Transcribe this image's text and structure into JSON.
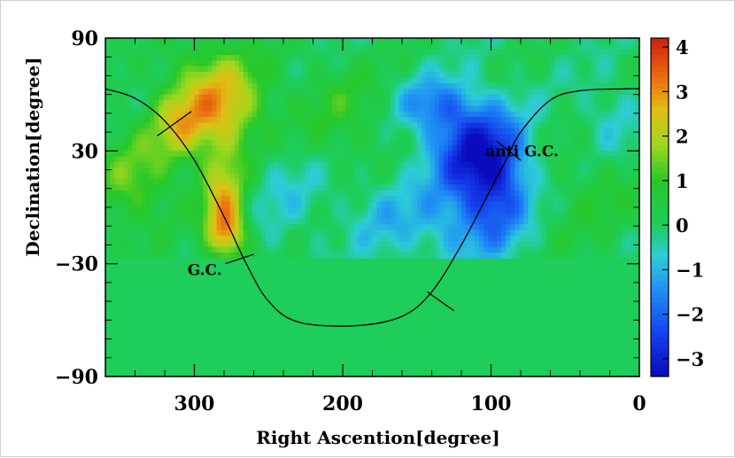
{
  "chart_data": {
    "type": "heatmap",
    "title": "",
    "xlabel": "Right Ascention[degree]",
    "ylabel": "Declination[degree]",
    "x_reversed": true,
    "xlim": [
      360,
      0
    ],
    "ylim": [
      -90,
      90
    ],
    "x_ticks": [
      300,
      200,
      100,
      0
    ],
    "x_tick_labels": [
      "300",
      "200",
      "100",
      "0"
    ],
    "y_ticks": [
      90,
      30,
      -30,
      -90
    ],
    "y_tick_labels": [
      "90",
      "30",
      "−30",
      "−90"
    ],
    "data_dec_range": [
      -25,
      90
    ],
    "no_data_value": 0,
    "colorbar": {
      "range": [
        -3.4,
        4.2
      ],
      "ticks": [
        4,
        3,
        2,
        1,
        0,
        -1,
        -2,
        -3
      ],
      "tick_labels": [
        "4",
        "3",
        "2",
        "1",
        "0",
        "−1",
        "−2",
        "−3"
      ]
    },
    "features": [
      {
        "ra": 285,
        "dec": 55,
        "sigma_ra": 22,
        "sigma_dec": 20,
        "value": 2.8
      },
      {
        "ra": 312,
        "dec": 44,
        "sigma_ra": 12,
        "sigma_dec": 12,
        "value": 1.2
      },
      {
        "ra": 280,
        "dec": 0,
        "sigma_ra": 10,
        "sigma_dec": 18,
        "value": 2.6
      },
      {
        "ra": 277,
        "dec": -15,
        "sigma_ra": 9,
        "sigma_dec": 8,
        "value": 1.5
      },
      {
        "ra": 340,
        "dec": 15,
        "sigma_ra": 20,
        "sigma_dec": 20,
        "value": 1.3
      },
      {
        "ra": 110,
        "dec": 30,
        "sigma_ra": 22,
        "sigma_dec": 18,
        "value": -3.0
      },
      {
        "ra": 95,
        "dec": 5,
        "sigma_ra": 15,
        "sigma_dec": 18,
        "value": -1.6
      },
      {
        "ra": 140,
        "dec": 55,
        "sigma_ra": 18,
        "sigma_dec": 10,
        "value": -1.4
      },
      {
        "ra": 120,
        "dec": -10,
        "sigma_ra": 22,
        "sigma_dec": 15,
        "value": -1.0
      },
      {
        "ra": 200,
        "dec": 50,
        "sigma_ra": 25,
        "sigma_dec": 20,
        "value": 0.8
      },
      {
        "ra": 170,
        "dec": -5,
        "sigma_ra": 20,
        "sigma_dec": 15,
        "value": -0.8
      },
      {
        "ra": 240,
        "dec": 10,
        "sigma_ra": 20,
        "sigma_dec": 20,
        "value": -0.6
      },
      {
        "ra": 30,
        "dec": 10,
        "sigma_ra": 25,
        "sigma_dec": 25,
        "value": 0.6
      },
      {
        "ra": 20,
        "dec": 45,
        "sigma_ra": 15,
        "sigma_dec": 15,
        "value": -0.8
      }
    ],
    "galactic_plane": {
      "label": "galactic plane",
      "points": [
        [
          360,
          63
        ],
        [
          340,
          58
        ],
        [
          320,
          46
        ],
        [
          300,
          25
        ],
        [
          280,
          -5
        ],
        [
          265,
          -30
        ],
        [
          250,
          -50
        ],
        [
          230,
          -61
        ],
        [
          192,
          -63
        ],
        [
          160,
          -58
        ],
        [
          140,
          -45
        ],
        [
          120,
          -20
        ],
        [
          100,
          10
        ],
        [
          90,
          25
        ],
        [
          80,
          40
        ],
        [
          60,
          57
        ],
        [
          40,
          62
        ],
        [
          10,
          63
        ],
        [
          0,
          63
        ]
      ],
      "markers": [
        {
          "name": "marker-north",
          "from": [
            325,
            38
          ],
          "to": [
            302,
            51
          ]
        },
        {
          "name": "marker-gc",
          "from": [
            279,
            -30
          ],
          "to": [
            260,
            -25
          ]
        },
        {
          "name": "marker-south",
          "from": [
            143,
            -45
          ],
          "to": [
            125,
            -55
          ]
        },
        {
          "name": "marker-anti-gc",
          "from": [
            96,
            35
          ],
          "to": [
            80,
            25
          ]
        }
      ]
    },
    "annotations": [
      {
        "name": "gc-label",
        "text": "G.C.",
        "ra": 293,
        "dec": -36
      },
      {
        "name": "anti-gc-label",
        "text": "anti G.C.",
        "ra": 79,
        "dec": 27
      }
    ]
  }
}
